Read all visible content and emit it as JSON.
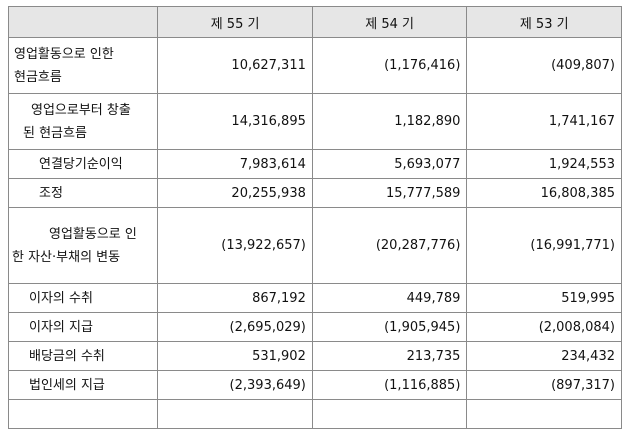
{
  "table": {
    "headers": [
      "",
      "제 55 기",
      "제 54 기",
      "제 53 기"
    ],
    "rows": [
      {
        "label_lines": [
          "영업활동으로 인한",
          "현금흐름"
        ],
        "values": [
          "10,627,311",
          "(1,176,416)",
          "(409,807)"
        ]
      },
      {
        "label_lines": [
          "영업으로부터 창출",
          "된 현금흐름"
        ],
        "values": [
          "14,316,895",
          "1,182,890",
          "1,741,167"
        ]
      },
      {
        "label_lines": [
          "연결당기순이익"
        ],
        "values": [
          "7,983,614",
          "5,693,077",
          "1,924,553"
        ]
      },
      {
        "label_lines": [
          "조정"
        ],
        "values": [
          "20,255,938",
          "15,777,589",
          "16,808,385"
        ]
      },
      {
        "label_lines": [
          "영업활동으로 인",
          "한 자산·부채의 변동"
        ],
        "values": [
          "(13,922,657)",
          "(20,287,776)",
          "(16,991,771)"
        ]
      },
      {
        "label_lines": [
          "이자의 수취"
        ],
        "values": [
          "867,192",
          "449,789",
          "519,995"
        ]
      },
      {
        "label_lines": [
          "이자의 지급"
        ],
        "values": [
          "(2,695,029)",
          "(1,905,945)",
          "(2,008,084)"
        ]
      },
      {
        "label_lines": [
          "배당금의 수취"
        ],
        "values": [
          "531,902",
          "213,735",
          "234,432"
        ]
      },
      {
        "label_lines": [
          "법인세의 지급"
        ],
        "values": [
          "(2,393,649)",
          "(1,116,885)",
          "(897,317)"
        ]
      },
      {
        "label_lines": [
          ""
        ],
        "values": [
          "",
          "",
          ""
        ]
      }
    ]
  }
}
